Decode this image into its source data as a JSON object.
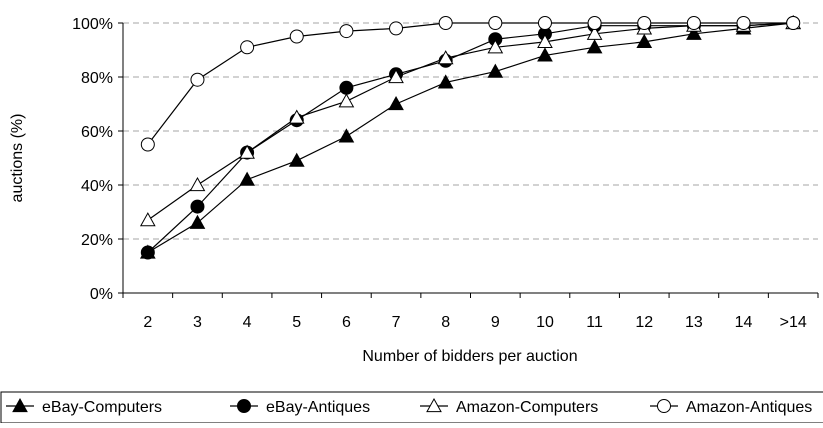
{
  "chart_data": {
    "type": "line",
    "title": "",
    "xlabel": "Number of bidders per auction",
    "ylabel": "auctions (%)",
    "categories": [
      "2",
      "3",
      "4",
      "5",
      "6",
      "7",
      "8",
      "9",
      "10",
      "11",
      "12",
      "13",
      "14",
      ">14"
    ],
    "ylim": [
      0,
      100
    ],
    "yticks": [
      0,
      20,
      40,
      60,
      80,
      100
    ],
    "ytick_labels": [
      "0%",
      "20%",
      "40%",
      "60%",
      "80%",
      "100%"
    ],
    "grid": "horizontal dashed",
    "legend_position": "bottom",
    "series": [
      {
        "name": "eBay-Computers",
        "marker": "filled-triangle",
        "values": [
          15,
          26,
          42,
          49,
          58,
          70,
          78,
          82,
          88,
          91,
          93,
          96,
          98,
          100
        ]
      },
      {
        "name": "eBay-Antiques",
        "marker": "filled-circle",
        "values": [
          15,
          32,
          52,
          64,
          76,
          81,
          86,
          94,
          96,
          99,
          99,
          99,
          99,
          100
        ]
      },
      {
        "name": "Amazon-Computers",
        "marker": "open-triangle",
        "values": [
          27,
          40,
          52,
          65,
          71,
          80,
          87,
          91,
          93,
          96,
          98,
          99,
          99,
          100
        ]
      },
      {
        "name": "Amazon-Antiques",
        "marker": "open-circle",
        "values": [
          55,
          79,
          91,
          95,
          97,
          98,
          100,
          100,
          100,
          100,
          100,
          100,
          100,
          100
        ]
      }
    ]
  }
}
